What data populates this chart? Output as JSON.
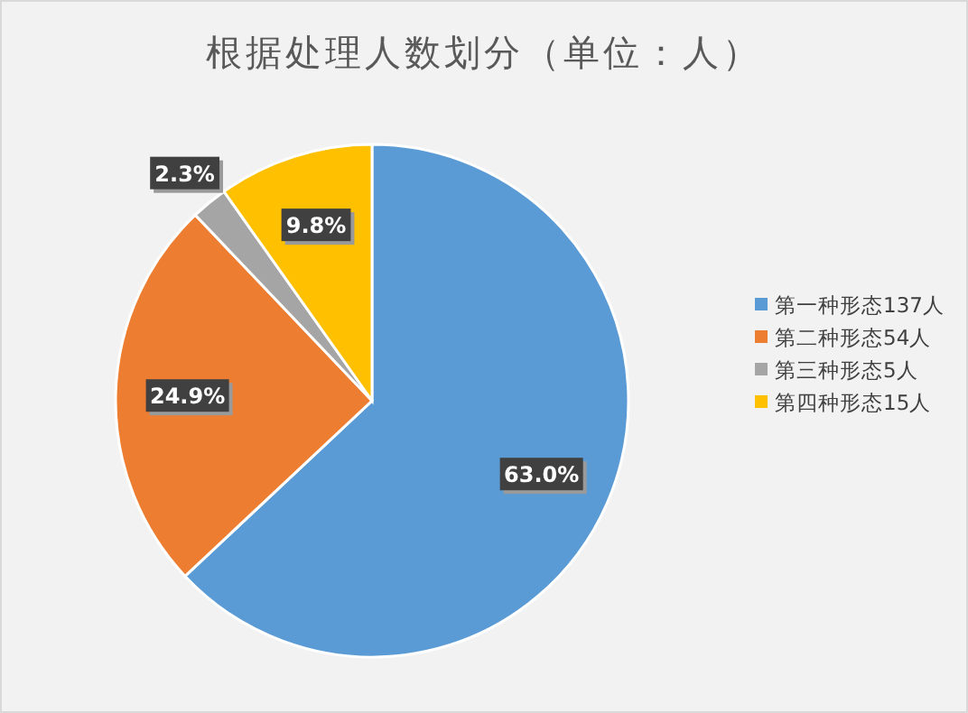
{
  "chart_data": {
    "type": "pie",
    "title": "根据处理人数划分（单位：人）",
    "categories": [
      "第一种形态137人",
      "第二种形态54人",
      "第三种形态5人",
      "第四种形态15人"
    ],
    "values": [
      63.0,
      24.9,
      2.3,
      9.8
    ],
    "colors": [
      "#5b9bd5",
      "#ed7d31",
      "#a5a5a5",
      "#ffc000"
    ],
    "value_labels": [
      "63.0%",
      "24.9%",
      "2.3%",
      "9.8%"
    ],
    "legend": "right"
  }
}
